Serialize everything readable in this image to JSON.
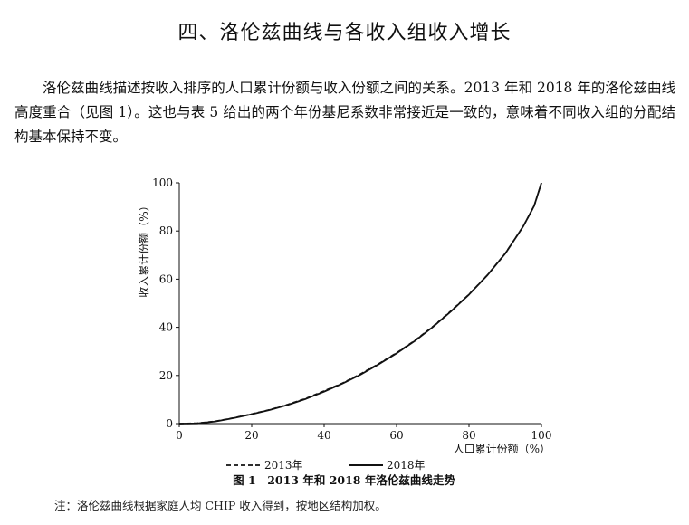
{
  "section_title": "四、洛伦兹曲线与各收入组收入增长",
  "paragraph": "洛伦兹曲线描述按收入排序的人口累计份额与收入份额之间的关系。2013 年和 2018 年的洛伦兹曲线高度重合（见图 1）。这也与表 5 给出的两个年份基尼系数非常接近是一致的，意味着不同收入组的分配结构基本保持不变。",
  "figure_caption": "图 1　2013 年和 2018 年洛伦兹曲线走势",
  "note": "注：洛伦兹曲线根据家庭人均 CHIP 收入得到，按地区结构加权。",
  "chart_data": {
    "type": "line",
    "xlabel": "人口累计份额（%）",
    "ylabel": "收入累计份额（%）",
    "xlim": [
      0,
      100
    ],
    "ylim": [
      0,
      100
    ],
    "xticks": [
      0,
      20,
      40,
      60,
      80,
      100
    ],
    "yticks": [
      0,
      20,
      40,
      60,
      80,
      100
    ],
    "legend_position": "bottom",
    "grid": false,
    "series": [
      {
        "name": "2013年",
        "style": "dashed",
        "color": "#111111",
        "x": [
          0,
          5,
          10,
          15,
          20,
          25,
          30,
          35,
          40,
          45,
          50,
          55,
          60,
          65,
          70,
          75,
          80,
          85,
          90,
          95,
          98,
          100
        ],
        "y": [
          0,
          0.2,
          1.0,
          2.4,
          4.0,
          5.8,
          8.0,
          10.5,
          13.6,
          16.8,
          20.6,
          24.8,
          29.4,
          34.5,
          40.3,
          46.8,
          53.7,
          61.6,
          70.7,
          82.0,
          90.4,
          100
        ]
      },
      {
        "name": "2018年",
        "style": "solid",
        "color": "#111111",
        "x": [
          0,
          5,
          10,
          15,
          20,
          25,
          30,
          35,
          40,
          45,
          50,
          55,
          60,
          65,
          70,
          75,
          80,
          85,
          90,
          95,
          98,
          100
        ],
        "y": [
          0,
          0.1,
          0.9,
          2.3,
          3.9,
          5.7,
          7.8,
          10.3,
          13.3,
          16.6,
          20.3,
          24.6,
          29.2,
          34.3,
          40.1,
          46.6,
          53.6,
          61.5,
          70.6,
          82.0,
          90.5,
          100
        ]
      }
    ]
  }
}
